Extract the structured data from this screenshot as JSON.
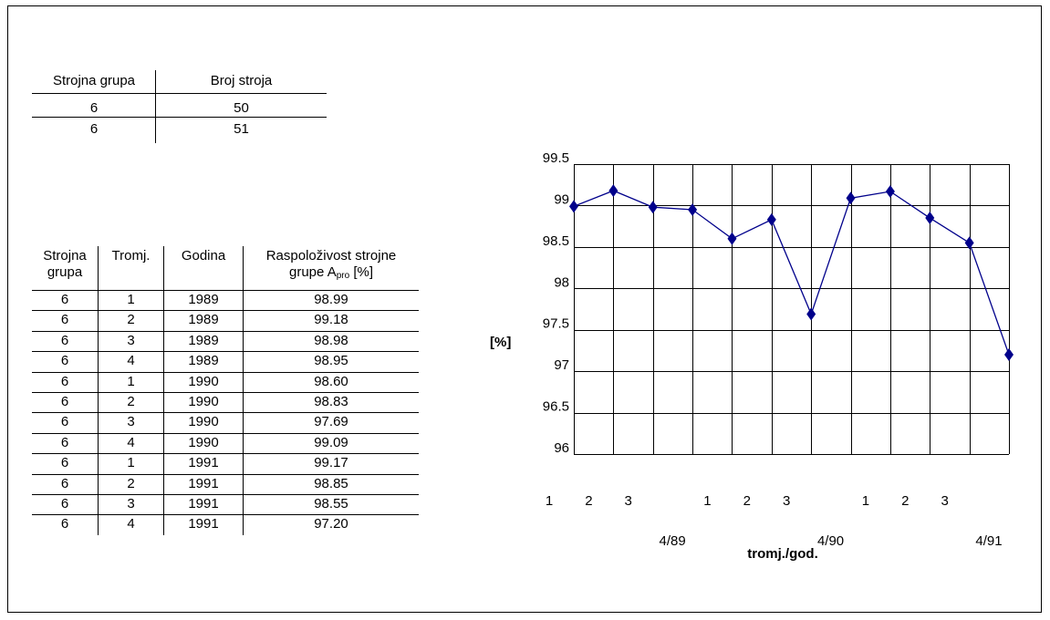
{
  "machine_table": {
    "headers": [
      "Strojna grupa",
      "Broj stroja"
    ],
    "rows": [
      [
        "6",
        "50"
      ],
      [
        "6",
        "51"
      ]
    ]
  },
  "availability_table": {
    "headers": {
      "group_line1": "Strojna",
      "group_line2": "grupa",
      "quarter": "Tromj.",
      "year": "Godina",
      "avail_line1": "Raspoloživost strojne",
      "avail_line2_prefix": "grupe A",
      "avail_line2_sub": "pro",
      "avail_line2_suffix": " [%]"
    },
    "rows": [
      [
        "6",
        "1",
        "1989",
        "98.99"
      ],
      [
        "6",
        "2",
        "1989",
        "99.18"
      ],
      [
        "6",
        "3",
        "1989",
        "98.98"
      ],
      [
        "6",
        "4",
        "1989",
        "98.95"
      ],
      [
        "6",
        "1",
        "1990",
        "98.60"
      ],
      [
        "6",
        "2",
        "1990",
        "98.83"
      ],
      [
        "6",
        "3",
        "1990",
        "97.69"
      ],
      [
        "6",
        "4",
        "1990",
        "99.09"
      ],
      [
        "6",
        "1",
        "1991",
        "99.17"
      ],
      [
        "6",
        "2",
        "1991",
        "98.85"
      ],
      [
        "6",
        "3",
        "1991",
        "98.55"
      ],
      [
        "6",
        "4",
        "1991",
        "97.20"
      ]
    ]
  },
  "chart_data": {
    "type": "line",
    "title": "",
    "xlabel": "tromj./god.",
    "ylabel": "[%]",
    "ylim": [
      96,
      99.5
    ],
    "yticks": [
      "99.5",
      "99",
      "98.5",
      "98",
      "97.5",
      "97",
      "96.5",
      "96"
    ],
    "grid": true,
    "categories": [
      "1",
      "2",
      "3",
      "4/89",
      "1",
      "2",
      "3",
      "4/90",
      "1",
      "2",
      "3",
      "4/91"
    ],
    "series": [
      {
        "values": [
          98.99,
          99.18,
          98.98,
          98.95,
          98.6,
          98.83,
          97.69,
          99.09,
          99.17,
          98.85,
          98.55,
          97.2
        ]
      }
    ],
    "line_color": "#00008B",
    "marker": "diamond"
  }
}
